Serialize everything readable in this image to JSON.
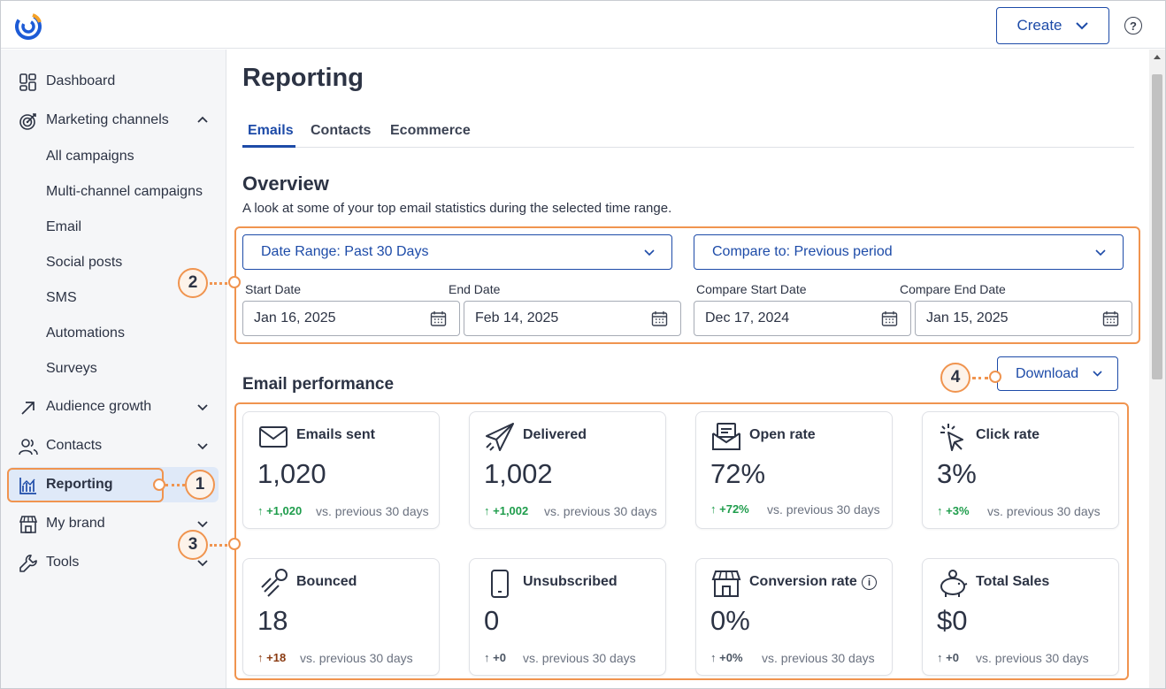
{
  "header": {
    "logo": "constant-contact-logo",
    "create_label": "Create",
    "help_symbol": "?"
  },
  "sidebar": {
    "dashboard": "Dashboard",
    "marketing_channels": "Marketing channels",
    "sub_items": [
      "All campaigns",
      "Multi-channel campaigns",
      "Email",
      "Social posts",
      "SMS",
      "Automations",
      "Surveys"
    ],
    "audience_growth": "Audience growth",
    "contacts": "Contacts",
    "reporting": "Reporting",
    "my_brand": "My brand",
    "tools": "Tools"
  },
  "main": {
    "title": "Reporting",
    "tabs": [
      "Emails",
      "Contacts",
      "Ecommerce"
    ],
    "active_tab": "Emails",
    "overview_title": "Overview",
    "overview_subtitle": "A look at some of your top email statistics during the selected time range.",
    "date_range_select": "Date Range: Past 30 Days",
    "compare_select": "Compare to: Previous period",
    "fields": {
      "start_date_label": "Start Date",
      "start_date": "Jan 16, 2025",
      "end_date_label": "End Date",
      "end_date": "Feb 14, 2025",
      "compare_start_label": "Compare Start Date",
      "compare_start": "Dec 17, 2024",
      "compare_end_label": "Compare End Date",
      "compare_end": "Jan 15, 2025"
    },
    "performance_title": "Email performance",
    "download_label": "Download",
    "cards": [
      {
        "title": "Emails sent",
        "value": "1,020",
        "arrow": "↑",
        "delta": "+1,020",
        "vs": "vs. previous 30 days"
      },
      {
        "title": "Delivered",
        "value": "1,002",
        "arrow": "↑",
        "delta": "+1,002",
        "vs": "vs. previous 30 days"
      },
      {
        "title": "Open rate",
        "value": "72%",
        "arrow": "↑",
        "delta": "+72%",
        "vs": "vs. previous 30 days"
      },
      {
        "title": "Click rate",
        "value": "3%",
        "arrow": "↑",
        "delta": "+3%",
        "vs": "vs. previous 30 days"
      },
      {
        "title": "Bounced",
        "value": "18",
        "arrow": "↑",
        "delta": "+18",
        "vs": "vs. previous 30 days"
      },
      {
        "title": "Unsubscribed",
        "value": "0",
        "arrow": "↑",
        "delta": "+0",
        "vs": "vs. previous 30 days"
      },
      {
        "title": "Conversion rate",
        "value": "0%",
        "arrow": "↑",
        "delta": "+0%",
        "vs": "vs. previous 30 days",
        "info": "i"
      },
      {
        "title": "Total Sales",
        "value": "$0",
        "arrow": "↑",
        "delta": "+0",
        "vs": "vs. previous 30 days"
      }
    ]
  },
  "annotations": [
    "1",
    "2",
    "3",
    "4"
  ],
  "colors": {
    "brand_blue": "#1d4ba8",
    "positive_green": "#1f9d4c",
    "negative_brown": "#8a3b12",
    "neutral_gray": "#4b5563",
    "annotation_orange": "#f0944f",
    "active_nav_bg": "#dfe9f8"
  }
}
